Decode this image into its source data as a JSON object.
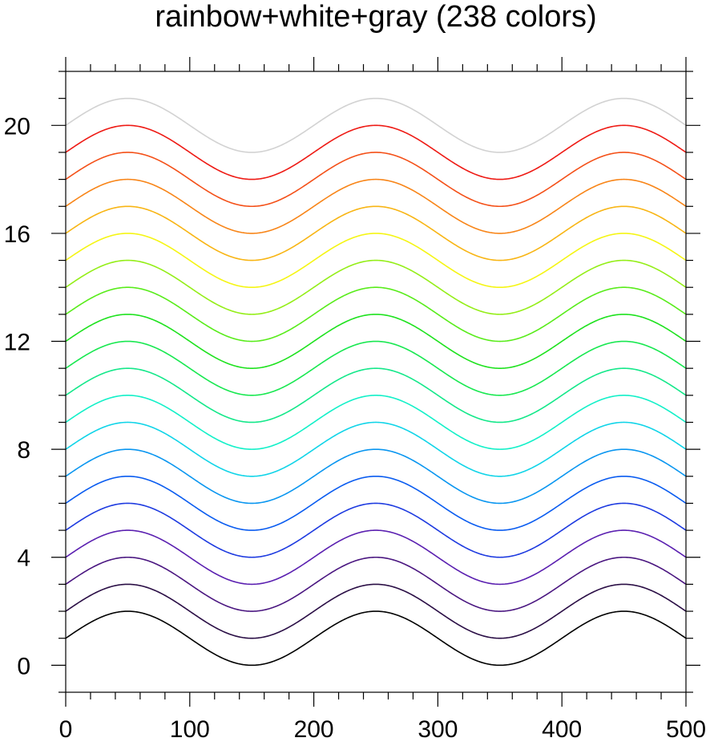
{
  "chart_data": {
    "type": "line",
    "title": "rainbow+white+gray (238 colors)",
    "xlabel": "",
    "ylabel": "",
    "xlim": [
      0,
      500
    ],
    "ylim": [
      -1,
      22
    ],
    "x_ticks": [
      0,
      100,
      200,
      300,
      400,
      500
    ],
    "y_ticks": [
      0,
      4,
      8,
      12,
      16,
      20
    ],
    "x_minor_step": 20,
    "y_minor_step": 1,
    "grid": false,
    "legend": "none",
    "curve": "y = offset + 1 + sin(2*pi*(x - 0)/200) (amplitude 1, period 200)",
    "x": [
      0,
      25,
      50,
      75,
      100,
      125,
      150,
      175,
      200,
      225,
      250,
      275,
      300,
      325,
      350,
      375,
      400,
      425,
      450,
      475,
      500
    ],
    "series": [
      {
        "color": "#000000",
        "values": [
          1,
          1.71,
          2,
          1.71,
          1,
          0.29,
          0,
          0.29,
          1,
          1.71,
          2,
          1.71,
          1,
          0.29,
          0,
          0.29,
          1,
          1.71,
          2,
          1.71,
          1
        ]
      },
      {
        "color": "#2a0e45",
        "values": [
          2,
          2.71,
          3,
          2.71,
          2,
          1.29,
          1,
          1.29,
          2,
          2.71,
          3,
          2.71,
          2,
          1.29,
          1,
          1.29,
          2,
          2.71,
          3,
          2.71,
          2
        ]
      },
      {
        "color": "#4a1680",
        "values": [
          3,
          3.71,
          4,
          3.71,
          3,
          2.29,
          2,
          2.29,
          3,
          3.71,
          4,
          3.71,
          3,
          2.29,
          2,
          2.29,
          3,
          3.71,
          4,
          3.71,
          3
        ]
      },
      {
        "color": "#5a1fb0",
        "values": [
          4,
          4.71,
          5,
          4.71,
          4,
          3.29,
          3,
          3.29,
          4,
          4.71,
          5,
          4.71,
          4,
          3.29,
          3,
          3.29,
          4,
          4.71,
          5,
          4.71,
          4
        ]
      },
      {
        "color": "#1e3be0",
        "values": [
          5,
          5.71,
          6,
          5.71,
          5,
          4.29,
          4,
          4.29,
          5,
          5.71,
          6,
          5.71,
          5,
          4.29,
          4,
          4.29,
          5,
          5.71,
          6,
          5.71,
          5
        ]
      },
      {
        "color": "#0a5cf0",
        "values": [
          6,
          6.71,
          7,
          6.71,
          6,
          5.29,
          5,
          5.29,
          6,
          6.71,
          7,
          6.71,
          6,
          5.29,
          5,
          5.29,
          6,
          6.71,
          7,
          6.71,
          6
        ]
      },
      {
        "color": "#0a96f0",
        "values": [
          7,
          7.71,
          8,
          7.71,
          7,
          6.29,
          6,
          6.29,
          7,
          7.71,
          8,
          7.71,
          7,
          6.29,
          6,
          6.29,
          7,
          7.71,
          8,
          7.71,
          7
        ]
      },
      {
        "color": "#10d4e8",
        "values": [
          8,
          8.71,
          9,
          8.71,
          8,
          7.29,
          7,
          7.29,
          8,
          8.71,
          9,
          8.71,
          8,
          7.29,
          7,
          7.29,
          8,
          8.71,
          9,
          8.71,
          8
        ]
      },
      {
        "color": "#12f0c8",
        "values": [
          9,
          9.71,
          10,
          9.71,
          9,
          8.29,
          8,
          8.29,
          9,
          9.71,
          10,
          9.71,
          9,
          8.29,
          8,
          8.29,
          9,
          9.71,
          10,
          9.71,
          9
        ]
      },
      {
        "color": "#14e88a",
        "values": [
          10,
          10.71,
          11,
          10.71,
          10,
          9.29,
          9,
          9.29,
          10,
          10.71,
          11,
          10.71,
          10,
          9.29,
          9,
          9.29,
          10,
          10.71,
          11,
          10.71,
          10
        ]
      },
      {
        "color": "#18e850",
        "values": [
          11,
          11.71,
          12,
          11.71,
          11,
          10.29,
          10,
          10.29,
          11,
          11.71,
          12,
          11.71,
          11,
          10.29,
          10,
          10.29,
          11,
          11.71,
          12,
          11.71,
          11
        ]
      },
      {
        "color": "#1ee21e",
        "values": [
          12,
          12.71,
          13,
          12.71,
          12,
          11.29,
          11,
          11.29,
          12,
          12.71,
          13,
          12.71,
          12,
          11.29,
          11,
          11.29,
          12,
          12.71,
          13,
          12.71,
          12
        ]
      },
      {
        "color": "#58ec1a",
        "values": [
          13,
          13.71,
          14,
          13.71,
          13,
          12.29,
          12,
          12.29,
          13,
          13.71,
          14,
          13.71,
          13,
          12.29,
          12,
          12.29,
          13,
          13.71,
          14,
          13.71,
          13
        ]
      },
      {
        "color": "#94ee18",
        "values": [
          14,
          14.71,
          15,
          14.71,
          14,
          13.29,
          13,
          13.29,
          14,
          14.71,
          15,
          14.71,
          14,
          13.29,
          13,
          13.29,
          14,
          14.71,
          15,
          14.71,
          14
        ]
      },
      {
        "color": "#f5f514",
        "values": [
          15,
          15.71,
          16,
          15.71,
          15,
          14.29,
          14,
          14.29,
          15,
          15.71,
          16,
          15.71,
          15,
          14.29,
          14,
          14.29,
          15,
          15.71,
          16,
          15.71,
          15
        ]
      },
      {
        "color": "#f8b514",
        "values": [
          16,
          16.71,
          17,
          16.71,
          16,
          15.29,
          15,
          15.29,
          16,
          16.71,
          17,
          16.71,
          16,
          15.29,
          15,
          15.29,
          16,
          16.71,
          17,
          16.71,
          16
        ]
      },
      {
        "color": "#f88518",
        "values": [
          17,
          17.71,
          18,
          17.71,
          17,
          16.29,
          16,
          16.29,
          17,
          17.71,
          18,
          17.71,
          17,
          16.29,
          16,
          16.29,
          17,
          17.71,
          18,
          17.71,
          17
        ]
      },
      {
        "color": "#f45018",
        "values": [
          18,
          18.71,
          19,
          18.71,
          18,
          17.29,
          17,
          17.29,
          18,
          18.71,
          19,
          18.71,
          18,
          17.29,
          17,
          17.29,
          18,
          18.71,
          19,
          18.71,
          18
        ]
      },
      {
        "color": "#ee1a14",
        "values": [
          19,
          19.71,
          20,
          19.71,
          19,
          18.29,
          18,
          18.29,
          19,
          19.71,
          20,
          19.71,
          19,
          18.29,
          18,
          18.29,
          19,
          19.71,
          20,
          19.71,
          19
        ]
      },
      {
        "color": "#d2d2d2",
        "values": [
          20,
          20.71,
          21,
          20.71,
          20,
          19.29,
          19,
          19.29,
          20,
          20.71,
          21,
          20.71,
          20,
          19.29,
          19,
          19.29,
          20,
          20.71,
          21,
          20.71,
          20
        ]
      }
    ]
  }
}
